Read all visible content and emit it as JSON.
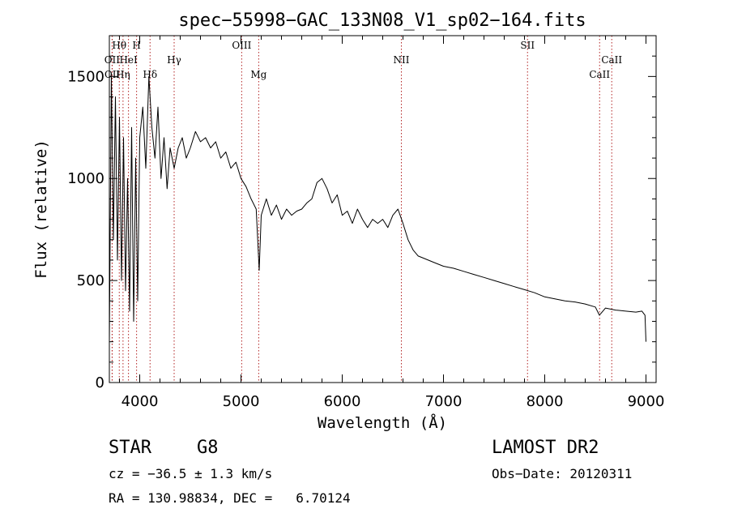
{
  "chart_data": {
    "type": "line",
    "title": "spec−55998−GAC_133N08_V1_sp02−164.fits",
    "xlabel": "Wavelength (Å)",
    "ylabel": "Flux (relative)",
    "xlim": [
      3700,
      9100
    ],
    "ylim": [
      0,
      1700
    ],
    "x_ticks": [
      4000,
      5000,
      6000,
      7000,
      8000,
      9000
    ],
    "y_ticks": [
      0,
      500,
      1000,
      1500
    ],
    "grid": false,
    "series": [
      {
        "color": "#000000",
        "x": [
          3700,
          3720,
          3740,
          3760,
          3780,
          3800,
          3820,
          3840,
          3860,
          3880,
          3900,
          3920,
          3940,
          3960,
          3980,
          4000,
          4030,
          4060,
          4090,
          4120,
          4150,
          4180,
          4210,
          4240,
          4270,
          4300,
          4340,
          4380,
          4420,
          4460,
          4500,
          4550,
          4600,
          4650,
          4700,
          4750,
          4800,
          4850,
          4900,
          4950,
          5000,
          5050,
          5100,
          5150,
          5180,
          5200,
          5250,
          5300,
          5350,
          5400,
          5450,
          5500,
          5550,
          5600,
          5650,
          5700,
          5750,
          5800,
          5850,
          5900,
          5950,
          6000,
          6050,
          6100,
          6150,
          6200,
          6250,
          6300,
          6350,
          6400,
          6450,
          6500,
          6550,
          6600,
          6650,
          6700,
          6750,
          6800,
          6900,
          7000,
          7100,
          7200,
          7300,
          7400,
          7500,
          7600,
          7700,
          7800,
          7900,
          8000,
          8100,
          8200,
          8300,
          8400,
          8500,
          8540,
          8600,
          8700,
          8800,
          8900,
          8960,
          8990,
          9000
        ],
        "y": [
          200,
          1500,
          700,
          1400,
          600,
          1300,
          500,
          1200,
          450,
          1000,
          350,
          1250,
          300,
          1100,
          400,
          1200,
          1350,
          1050,
          1500,
          1250,
          1100,
          1350,
          1000,
          1200,
          950,
          1150,
          1050,
          1150,
          1200,
          1100,
          1150,
          1230,
          1180,
          1200,
          1150,
          1180,
          1100,
          1130,
          1050,
          1080,
          1000,
          960,
          900,
          850,
          550,
          820,
          900,
          820,
          870,
          800,
          850,
          820,
          840,
          850,
          880,
          900,
          980,
          1000,
          950,
          880,
          920,
          820,
          840,
          780,
          850,
          800,
          760,
          800,
          780,
          800,
          760,
          820,
          850,
          780,
          700,
          650,
          620,
          610,
          590,
          570,
          560,
          545,
          530,
          515,
          500,
          485,
          470,
          455,
          440,
          420,
          410,
          400,
          395,
          385,
          370,
          330,
          365,
          355,
          350,
          345,
          350,
          330,
          200
        ]
      }
    ],
    "spectral_lines": [
      {
        "name": "Hθ",
        "x": 3798,
        "row": 1
      },
      {
        "name": "H",
        "x": 3969,
        "row": 1
      },
      {
        "name": "OII",
        "x": 3727,
        "row": 2
      },
      {
        "name": "HeI",
        "x": 3889,
        "row": 2
      },
      {
        "name": "Hγ",
        "x": 4340,
        "row": 2
      },
      {
        "name": "OII",
        "x": 3729,
        "row": 3
      },
      {
        "name": "Hη",
        "x": 3835,
        "row": 3
      },
      {
        "name": "Hδ",
        "x": 4102,
        "row": 3
      },
      {
        "name": "OIII",
        "x": 5007,
        "row": 1
      },
      {
        "name": "Mg",
        "x": 5175,
        "row": 3
      },
      {
        "name": "NII",
        "x": 6584,
        "row": 2
      },
      {
        "name": "SII",
        "x": 7830,
        "row": 1
      },
      {
        "name": "CaII",
        "x": 8542,
        "row": 3
      },
      {
        "name": "CaII",
        "x": 8662,
        "row": 2
      }
    ]
  },
  "info": {
    "object_class": "STAR",
    "subclass": "G8",
    "survey": "LAMOST DR2",
    "redshift": "cz = −36.5 ± 1.3 km/s",
    "obs_date": "Obs−Date: 20120311",
    "coords": "RA = 130.98834, DEC =   6.70124"
  }
}
